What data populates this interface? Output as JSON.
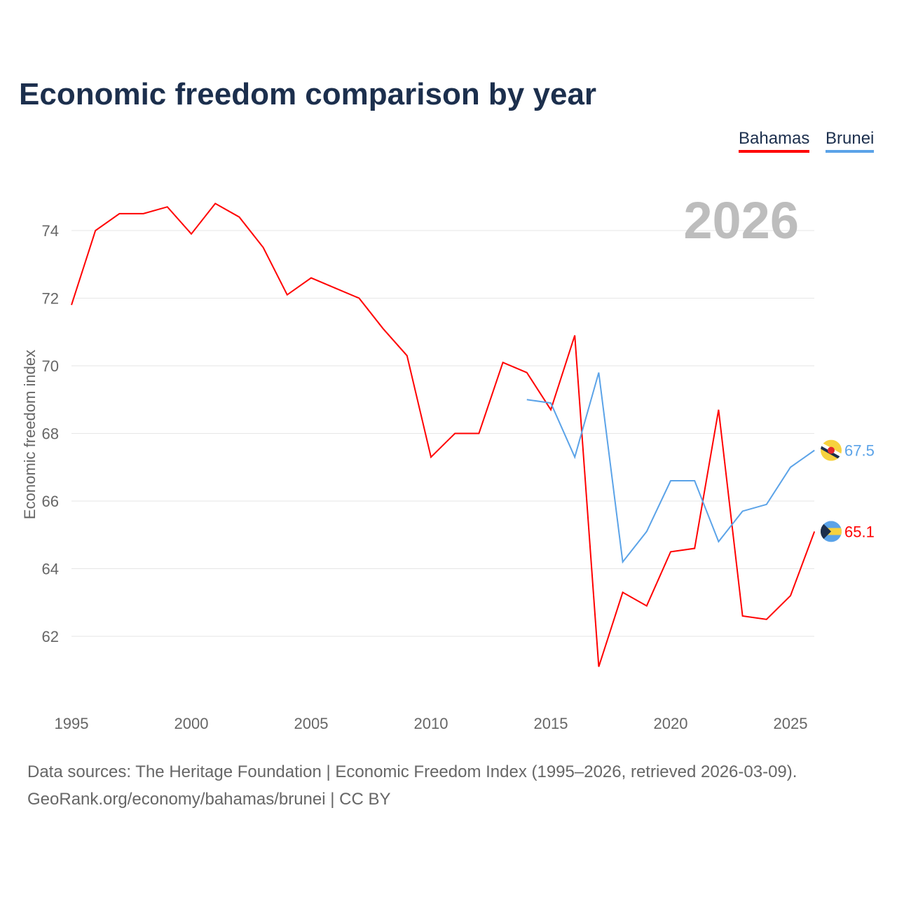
{
  "chart_data": {
    "type": "line",
    "title": "Economic freedom comparison by year",
    "xlabel": "",
    "ylabel": "Economic freedom index",
    "year_label": "2026",
    "xlim": [
      1995,
      2026
    ],
    "ylim": [
      60.2,
      76
    ],
    "x_ticks": [
      1995,
      2000,
      2005,
      2010,
      2015,
      2020,
      2025
    ],
    "y_ticks": [
      62,
      64,
      66,
      68,
      70,
      72,
      74
    ],
    "grid": true,
    "legend_position": "top-right",
    "series": [
      {
        "name": "Bahamas",
        "color": "#ff0000",
        "end_label": "65.1",
        "flag": "bahamas-flag",
        "x": [
          1995,
          1996,
          1997,
          1998,
          1999,
          2000,
          2001,
          2002,
          2003,
          2004,
          2005,
          2006,
          2007,
          2008,
          2009,
          2010,
          2011,
          2012,
          2013,
          2014,
          2015,
          2016,
          2017,
          2018,
          2019,
          2020,
          2021,
          2022,
          2023,
          2024,
          2025,
          2026
        ],
        "values": [
          71.8,
          74.0,
          74.5,
          74.5,
          74.7,
          73.9,
          74.8,
          74.4,
          73.5,
          72.1,
          72.6,
          72.3,
          72.0,
          71.1,
          70.3,
          67.3,
          68.0,
          68.0,
          70.1,
          69.8,
          68.7,
          70.9,
          61.1,
          63.3,
          62.9,
          64.5,
          64.6,
          68.7,
          62.6,
          62.5,
          63.2,
          65.1
        ]
      },
      {
        "name": "Brunei",
        "color": "#5ba3e8",
        "end_label": "67.5",
        "flag": "brunei-flag",
        "x": [
          2014,
          2015,
          2016,
          2017,
          2018,
          2019,
          2020,
          2021,
          2022,
          2023,
          2024,
          2025,
          2026
        ],
        "values": [
          69.0,
          68.9,
          67.3,
          69.8,
          64.2,
          65.1,
          66.6,
          66.6,
          64.8,
          65.7,
          65.9,
          67.0,
          67.5
        ]
      }
    ]
  },
  "footer": {
    "line1": "Data sources: The Heritage Foundation | Economic Freedom Index (1995–2026, retrieved 2026-03-09).",
    "line2": "GeoRank.org/economy/bahamas/brunei | CC BY"
  }
}
